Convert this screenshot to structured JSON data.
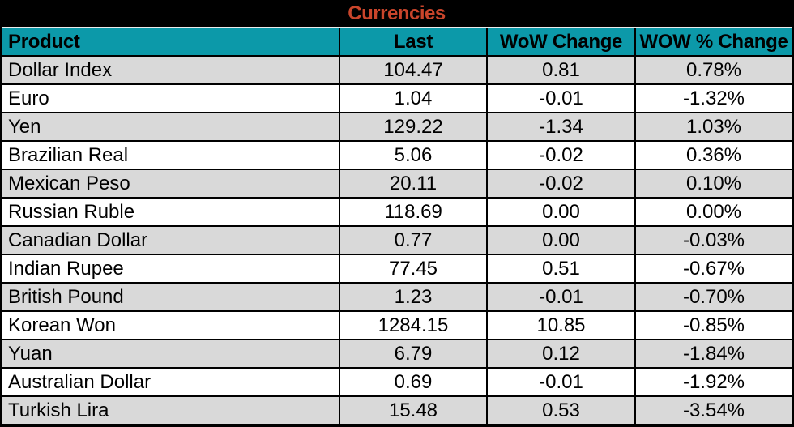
{
  "title": "Currencies",
  "colors": {
    "title_color": "#C9452B",
    "header_bg": "#0C99A9",
    "row_alt_bg": "#D9D9D9",
    "border": "#000000"
  },
  "table": {
    "columns": [
      "Product",
      "Last",
      "WoW Change",
      "WOW % Change"
    ],
    "rows": [
      {
        "product": "Dollar Index",
        "last": "104.47",
        "wow_change": "0.81",
        "wow_pct_change": "0.78%"
      },
      {
        "product": "Euro",
        "last": "1.04",
        "wow_change": "-0.01",
        "wow_pct_change": "-1.32%"
      },
      {
        "product": "Yen",
        "last": "129.22",
        "wow_change": "-1.34",
        "wow_pct_change": "1.03%"
      },
      {
        "product": "Brazilian Real",
        "last": "5.06",
        "wow_change": "-0.02",
        "wow_pct_change": "0.36%"
      },
      {
        "product": "Mexican Peso",
        "last": "20.11",
        "wow_change": "-0.02",
        "wow_pct_change": "0.10%"
      },
      {
        "product": "Russian Ruble",
        "last": "118.69",
        "wow_change": "0.00",
        "wow_pct_change": "0.00%"
      },
      {
        "product": "Canadian Dollar",
        "last": "0.77",
        "wow_change": "0.00",
        "wow_pct_change": "-0.03%"
      },
      {
        "product": "Indian Rupee",
        "last": "77.45",
        "wow_change": "0.51",
        "wow_pct_change": "-0.67%"
      },
      {
        "product": "British Pound",
        "last": "1.23",
        "wow_change": "-0.01",
        "wow_pct_change": "-0.70%"
      },
      {
        "product": "Korean Won",
        "last": "1284.15",
        "wow_change": "10.85",
        "wow_pct_change": "-0.85%"
      },
      {
        "product": "Yuan",
        "last": "6.79",
        "wow_change": "0.12",
        "wow_pct_change": "-1.84%"
      },
      {
        "product": "Australian Dollar",
        "last": "0.69",
        "wow_change": "-0.01",
        "wow_pct_change": "-1.92%"
      },
      {
        "product": "Turkish Lira",
        "last": "15.48",
        "wow_change": "0.53",
        "wow_pct_change": "-3.54%"
      }
    ]
  },
  "chart_data": {
    "type": "table",
    "title": "Currencies",
    "columns": [
      "Product",
      "Last",
      "WoW Change",
      "WOW % Change"
    ],
    "rows": [
      [
        "Dollar Index",
        104.47,
        0.81,
        "0.78%"
      ],
      [
        "Euro",
        1.04,
        -0.01,
        "-1.32%"
      ],
      [
        "Yen",
        129.22,
        -1.34,
        "1.03%"
      ],
      [
        "Brazilian Real",
        5.06,
        -0.02,
        "0.36%"
      ],
      [
        "Mexican Peso",
        20.11,
        -0.02,
        "0.10%"
      ],
      [
        "Russian Ruble",
        118.69,
        0.0,
        "0.00%"
      ],
      [
        "Canadian Dollar",
        0.77,
        0.0,
        "-0.03%"
      ],
      [
        "Indian Rupee",
        77.45,
        0.51,
        "-0.67%"
      ],
      [
        "British Pound",
        1.23,
        -0.01,
        "-0.70%"
      ],
      [
        "Korean Won",
        1284.15,
        10.85,
        "-0.85%"
      ],
      [
        "Yuan",
        6.79,
        0.12,
        "-1.84%"
      ],
      [
        "Australian Dollar",
        0.69,
        -0.01,
        "-1.92%"
      ],
      [
        "Turkish Lira",
        15.48,
        0.53,
        "-3.54%"
      ]
    ]
  }
}
